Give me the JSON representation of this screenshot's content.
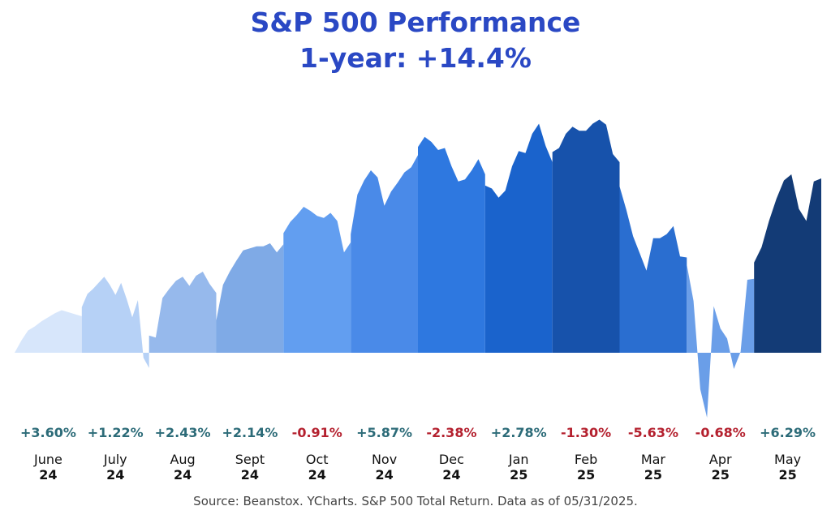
{
  "header": {
    "title": "S&P 500 Performance",
    "subtitle": "1-year: +14.4%"
  },
  "source": "Source: Beanstox. YCharts. S&P 500 Total Return. Data as of 05/31/2025.",
  "colors": {
    "positive": "#2c6b78",
    "negative": "#b4202e",
    "title": "#2a48c4"
  },
  "chart_data": {
    "type": "area",
    "title": "S&P 500 Performance",
    "subtitle": "1-year: +14.4%",
    "ylabel": "",
    "xlabel": "",
    "ylim": [
      -7,
      30
    ],
    "baseline": 0,
    "months": [
      {
        "month": "June",
        "year": "24",
        "change": "+3.60%",
        "color": "#d7e6fb",
        "values": [
          0.0,
          1.2,
          2.2,
          2.6,
          3.1,
          3.5,
          3.9,
          4.2,
          4.0,
          3.8,
          3.6
        ]
      },
      {
        "month": "July",
        "year": "24",
        "change": "+1.22%",
        "color": "#b6d1f6",
        "values": [
          4.5,
          5.8,
          6.3,
          6.9,
          7.5,
          6.7,
          5.7,
          6.9,
          5.3,
          3.5,
          5.2,
          -0.5,
          -1.5
        ]
      },
      {
        "month": "Aug",
        "year": "24",
        "change": "+2.43%",
        "color": "#96b9ec",
        "values": [
          1.7,
          1.5,
          5.4,
          6.3,
          7.1,
          7.5,
          6.6,
          7.6,
          8.0,
          6.8,
          5.9
        ]
      },
      {
        "month": "Sept",
        "year": "24",
        "change": "+2.14%",
        "color": "#7faae6",
        "values": [
          3.2,
          6.7,
          8.0,
          9.1,
          10.1,
          10.3,
          10.5,
          10.5,
          10.8,
          9.9,
          10.7
        ]
      },
      {
        "month": "Oct",
        "year": "24",
        "change": "-0.91%",
        "color": "#629ef0",
        "values": [
          11.8,
          12.9,
          13.6,
          14.4,
          14.0,
          13.5,
          13.3,
          13.8,
          13.0,
          9.9,
          10.9
        ]
      },
      {
        "month": "Nov",
        "year": "24",
        "change": "+5.87%",
        "color": "#4a8ae8",
        "values": [
          11.7,
          15.6,
          17.0,
          18.0,
          17.3,
          14.5,
          15.9,
          16.8,
          17.8,
          18.3,
          19.5
        ]
      },
      {
        "month": "Dec",
        "year": "24",
        "change": "-2.38%",
        "color": "#2e78e0",
        "values": [
          20.3,
          21.3,
          20.8,
          20.0,
          20.2,
          18.4,
          16.9,
          17.1,
          18.0,
          19.1,
          17.6
        ]
      },
      {
        "month": "Jan",
        "year": "25",
        "change": "+2.78%",
        "color": "#1a63cc",
        "values": [
          16.5,
          16.2,
          15.3,
          16.0,
          18.4,
          19.9,
          19.7,
          21.6,
          22.6,
          20.4,
          18.8
        ]
      },
      {
        "month": "Feb",
        "year": "25",
        "change": "-1.30%",
        "color": "#1752ab",
        "values": [
          19.8,
          20.2,
          21.6,
          22.3,
          21.9,
          21.9,
          22.6,
          23.0,
          22.5,
          19.6,
          18.8
        ]
      },
      {
        "month": "Mar",
        "year": "25",
        "change": "-5.63%",
        "color": "#2a6ed0",
        "values": [
          16.4,
          14.1,
          11.5,
          9.8,
          8.1,
          11.3,
          11.3,
          11.7,
          12.5,
          9.5,
          9.4
        ]
      },
      {
        "month": "Apr",
        "year": "25",
        "change": "-0.68%",
        "color": "#6a9ee8",
        "values": [
          8.7,
          5.1,
          -3.6,
          -6.4,
          4.6,
          2.4,
          1.4,
          -1.6,
          0.1,
          7.2,
          7.3
        ]
      },
      {
        "month": "May",
        "year": "25",
        "change": "+6.29%",
        "color": "#133b76",
        "values": [
          8.9,
          10.4,
          13.0,
          15.2,
          17.0,
          17.6,
          14.2,
          13.0,
          16.9,
          17.2
        ]
      }
    ]
  }
}
